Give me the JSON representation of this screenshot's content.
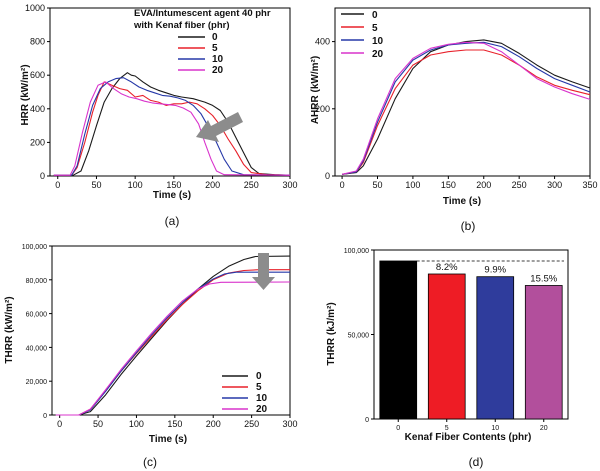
{
  "chart_data": [
    {
      "panel_label": "(a)",
      "type": "line",
      "xlabel": "Time (s)",
      "ylabel": "HRR (kW/m²)",
      "xlim": [
        -10,
        300
      ],
      "ylim": [
        0,
        1000
      ],
      "x_ticks": [
        "0",
        "50",
        "100",
        "150",
        "200",
        "250",
        "300"
      ],
      "y_ticks": [
        "0",
        "200",
        "400",
        "600",
        "800",
        "1000"
      ],
      "legend_title": [
        "EVA/Intumescent agent 40 phr",
        "with Kenaf fiber (phr)"
      ],
      "legend_position": "top-center",
      "arrow": "decreasing",
      "series": [
        {
          "name": "0",
          "color": "#1a1a1a",
          "points": [
            [
              -5,
              5
            ],
            [
              20,
              5
            ],
            [
              30,
              30
            ],
            [
              40,
              150
            ],
            [
              50,
              300
            ],
            [
              60,
              440
            ],
            [
              70,
              520
            ],
            [
              80,
              580
            ],
            [
              90,
              615
            ],
            [
              95,
              600
            ],
            [
              100,
              595
            ],
            [
              110,
              560
            ],
            [
              120,
              530
            ],
            [
              130,
              510
            ],
            [
              140,
              495
            ],
            [
              150,
              480
            ],
            [
              160,
              470
            ],
            [
              175,
              460
            ],
            [
              190,
              440
            ],
            [
              200,
              420
            ],
            [
              210,
              390
            ],
            [
              220,
              320
            ],
            [
              230,
              230
            ],
            [
              240,
              140
            ],
            [
              250,
              50
            ],
            [
              260,
              15
            ],
            [
              280,
              8
            ],
            [
              300,
              5
            ]
          ]
        },
        {
          "name": "5",
          "color": "#e8202a",
          "points": [
            [
              -5,
              5
            ],
            [
              18,
              5
            ],
            [
              25,
              50
            ],
            [
              35,
              200
            ],
            [
              45,
              380
            ],
            [
              52,
              480
            ],
            [
              60,
              560
            ],
            [
              70,
              540
            ],
            [
              80,
              520
            ],
            [
              90,
              510
            ],
            [
              100,
              470
            ],
            [
              110,
              480
            ],
            [
              120,
              450
            ],
            [
              130,
              440
            ],
            [
              140,
              420
            ],
            [
              150,
              430
            ],
            [
              160,
              430
            ],
            [
              170,
              440
            ],
            [
              180,
              430
            ],
            [
              190,
              400
            ],
            [
              200,
              360
            ],
            [
              210,
              300
            ],
            [
              220,
              220
            ],
            [
              230,
              150
            ],
            [
              240,
              70
            ],
            [
              250,
              20
            ],
            [
              270,
              8
            ],
            [
              300,
              5
            ]
          ]
        },
        {
          "name": "10",
          "color": "#2638a8",
          "points": [
            [
              -5,
              5
            ],
            [
              18,
              5
            ],
            [
              25,
              60
            ],
            [
              35,
              250
            ],
            [
              45,
              420
            ],
            [
              55,
              520
            ],
            [
              65,
              560
            ],
            [
              75,
              580
            ],
            [
              85,
              585
            ],
            [
              95,
              560
            ],
            [
              105,
              530
            ],
            [
              115,
              510
            ],
            [
              125,
              495
            ],
            [
              135,
              480
            ],
            [
              145,
              475
            ],
            [
              155,
              465
            ],
            [
              165,
              450
            ],
            [
              175,
              420
            ],
            [
              185,
              370
            ],
            [
              195,
              290
            ],
            [
              205,
              200
            ],
            [
              215,
              100
            ],
            [
              225,
              30
            ],
            [
              240,
              8
            ],
            [
              300,
              5
            ]
          ]
        },
        {
          "name": "20",
          "color": "#d933cc",
          "points": [
            [
              -5,
              5
            ],
            [
              16,
              5
            ],
            [
              22,
              60
            ],
            [
              32,
              260
            ],
            [
              42,
              440
            ],
            [
              52,
              540
            ],
            [
              62,
              560
            ],
            [
              72,
              520
            ],
            [
              82,
              490
            ],
            [
              92,
              470
            ],
            [
              102,
              460
            ],
            [
              112,
              445
            ],
            [
              122,
              435
            ],
            [
              132,
              430
            ],
            [
              142,
              425
            ],
            [
              152,
              420
            ],
            [
              162,
              405
            ],
            [
              172,
              380
            ],
            [
              182,
              310
            ],
            [
              190,
              200
            ],
            [
              198,
              100
            ],
            [
              205,
              30
            ],
            [
              215,
              8
            ],
            [
              300,
              5
            ]
          ]
        }
      ]
    },
    {
      "panel_label": "(b)",
      "type": "line",
      "xlabel": "Time (s)",
      "ylabel": "AHRR (kW/m²)",
      "xlim": [
        -10,
        350
      ],
      "ylim": [
        0,
        500
      ],
      "x_ticks": [
        "0",
        "50",
        "100",
        "150",
        "200",
        "250",
        "300",
        "350"
      ],
      "y_ticks": [
        "0",
        "200",
        "400"
      ],
      "legend_position": "top-left",
      "series": [
        {
          "name": "0",
          "color": "#1a1a1a",
          "points": [
            [
              0,
              5
            ],
            [
              20,
              10
            ],
            [
              30,
              30
            ],
            [
              50,
              110
            ],
            [
              75,
              230
            ],
            [
              100,
              320
            ],
            [
              125,
              370
            ],
            [
              150,
              390
            ],
            [
              175,
              400
            ],
            [
              200,
              405
            ],
            [
              225,
              395
            ],
            [
              250,
              365
            ],
            [
              275,
              330
            ],
            [
              300,
              300
            ],
            [
              325,
              280
            ],
            [
              350,
              262
            ]
          ]
        },
        {
          "name": "5",
          "color": "#e8202a",
          "points": [
            [
              0,
              5
            ],
            [
              20,
              12
            ],
            [
              30,
              40
            ],
            [
              50,
              150
            ],
            [
              75,
              260
            ],
            [
              100,
              330
            ],
            [
              125,
              360
            ],
            [
              150,
              370
            ],
            [
              175,
              375
            ],
            [
              200,
              375
            ],
            [
              225,
              360
            ],
            [
              250,
              330
            ],
            [
              275,
              295
            ],
            [
              300,
              270
            ],
            [
              325,
              255
            ],
            [
              350,
              242
            ]
          ]
        },
        {
          "name": "10",
          "color": "#2638a8",
          "points": [
            [
              0,
              5
            ],
            [
              20,
              12
            ],
            [
              30,
              45
            ],
            [
              50,
              160
            ],
            [
              75,
              280
            ],
            [
              100,
              345
            ],
            [
              125,
              375
            ],
            [
              150,
              390
            ],
            [
              175,
              395
            ],
            [
              200,
              398
            ],
            [
              225,
              385
            ],
            [
              250,
              355
            ],
            [
              275,
              320
            ],
            [
              300,
              290
            ],
            [
              325,
              270
            ],
            [
              350,
              250
            ]
          ]
        },
        {
          "name": "20",
          "color": "#d933cc",
          "points": [
            [
              0,
              5
            ],
            [
              20,
              15
            ],
            [
              30,
              50
            ],
            [
              50,
              170
            ],
            [
              75,
              290
            ],
            [
              100,
              350
            ],
            [
              125,
              380
            ],
            [
              150,
              392
            ],
            [
              175,
              398
            ],
            [
              200,
              395
            ],
            [
              225,
              370
            ],
            [
              250,
              330
            ],
            [
              275,
              290
            ],
            [
              300,
              265
            ],
            [
              325,
              245
            ],
            [
              350,
              228
            ]
          ]
        }
      ]
    },
    {
      "panel_label": "(c)",
      "type": "line",
      "xlabel": "Time (s)",
      "ylabel": "THRR (kW/m²)",
      "xlim": [
        -10,
        300
      ],
      "ylim": [
        0,
        100000
      ],
      "x_ticks": [
        "0",
        "50",
        "100",
        "150",
        "200",
        "250",
        "300"
      ],
      "y_ticks": [
        "0",
        "20,000",
        "40,000",
        "60,000",
        "80,000",
        "100,000"
      ],
      "legend_position": "bottom-right",
      "arrow": "decreasing",
      "series": [
        {
          "name": "0",
          "color": "#1a1a1a",
          "points": [
            [
              -5,
              0
            ],
            [
              25,
              0
            ],
            [
              40,
              2000
            ],
            [
              60,
              12000
            ],
            [
              80,
              24000
            ],
            [
              100,
              35000
            ],
            [
              120,
              45500
            ],
            [
              140,
              56000
            ],
            [
              160,
              65500
            ],
            [
              180,
              74500
            ],
            [
              200,
              82000
            ],
            [
              220,
              88000
            ],
            [
              240,
              92000
            ],
            [
              255,
              93800
            ],
            [
              300,
              94000
            ]
          ]
        },
        {
          "name": "5",
          "color": "#e8202a",
          "points": [
            [
              -5,
              0
            ],
            [
              25,
              0
            ],
            [
              40,
              3500
            ],
            [
              60,
              14500
            ],
            [
              80,
              26000
            ],
            [
              100,
              36500
            ],
            [
              120,
              46500
            ],
            [
              140,
              56500
            ],
            [
              160,
              65500
            ],
            [
              180,
              73500
            ],
            [
              200,
              80000
            ],
            [
              220,
              84000
            ],
            [
              240,
              85500
            ],
            [
              260,
              86000
            ],
            [
              300,
              86000
            ]
          ]
        },
        {
          "name": "10",
          "color": "#2638a8",
          "points": [
            [
              -5,
              0
            ],
            [
              25,
              0
            ],
            [
              40,
              3000
            ],
            [
              60,
              14000
            ],
            [
              80,
              26000
            ],
            [
              100,
              37000
            ],
            [
              120,
              47500
            ],
            [
              140,
              57500
            ],
            [
              160,
              66500
            ],
            [
              180,
              74500
            ],
            [
              200,
              80500
            ],
            [
              215,
              83500
            ],
            [
              230,
              84500
            ],
            [
              300,
              84500
            ]
          ]
        },
        {
          "name": "20",
          "color": "#d933cc",
          "points": [
            [
              -5,
              0
            ],
            [
              25,
              0
            ],
            [
              40,
              3500
            ],
            [
              60,
              15000
            ],
            [
              80,
              27000
            ],
            [
              100,
              38000
            ],
            [
              120,
              48500
            ],
            [
              140,
              58500
            ],
            [
              160,
              67500
            ],
            [
              180,
              74500
            ],
            [
              195,
              77500
            ],
            [
              210,
              78500
            ],
            [
              300,
              78700
            ]
          ]
        }
      ]
    },
    {
      "panel_label": "(d)",
      "type": "bar",
      "xlabel": "Kenaf Fiber Contents (phr)",
      "ylabel": "THRR (kJ/m²)",
      "ylim": [
        0,
        100000
      ],
      "y_ticks": [
        "0",
        "50,000",
        "100,000"
      ],
      "categories": [
        "0",
        "5",
        "10",
        "20"
      ],
      "values": [
        93500,
        85800,
        84200,
        79000
      ],
      "colors": [
        "#000000",
        "#ee1c25",
        "#2f3c9c",
        "#b24f9c"
      ],
      "bar_labels": [
        "",
        "8.2%",
        "9.9%",
        "15.5%"
      ],
      "reference_line": 93500
    }
  ]
}
